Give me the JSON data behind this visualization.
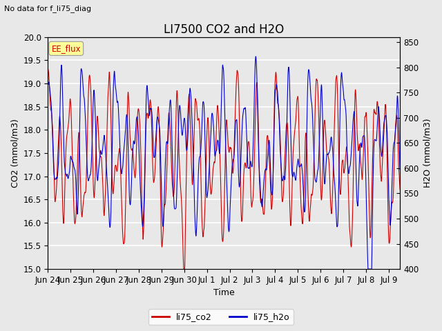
{
  "title": "LI7500 CO2 and H2O",
  "subtitle": "No data for f_li75_diag",
  "xlabel": "Time",
  "ylabel_left": "CO2 (mmol/m3)",
  "ylabel_right": "H2O (mmol/m3)",
  "ylim_left": [
    15.0,
    20.0
  ],
  "ylim_right": [
    400,
    860
  ],
  "co2_color": "#cc0000",
  "h2o_color": "#0000cc",
  "background_color": "#e8e8e8",
  "plot_bg_color": "#e8e8e8",
  "legend_labels": [
    "li75_co2",
    "li75_h2o"
  ],
  "annotation_text": "EE_flux",
  "annotation_color": "#cc0000",
  "annotation_bg": "#ffff99",
  "tick_dates": [
    "Jun 24",
    "Jun 25",
    "Jun 26",
    "Jun 27",
    "Jun 28",
    "Jun 29",
    "Jun 30",
    "Jul 1",
    "Jul 2",
    "Jul 3",
    "Jul 4",
    "Jul 5",
    "Jul 6",
    "Jul 7",
    "Jul 8",
    "Jul 9"
  ],
  "title_fontsize": 12,
  "label_fontsize": 9,
  "tick_fontsize": 8.5,
  "fig_width": 6.4,
  "fig_height": 4.8,
  "dpi": 100
}
